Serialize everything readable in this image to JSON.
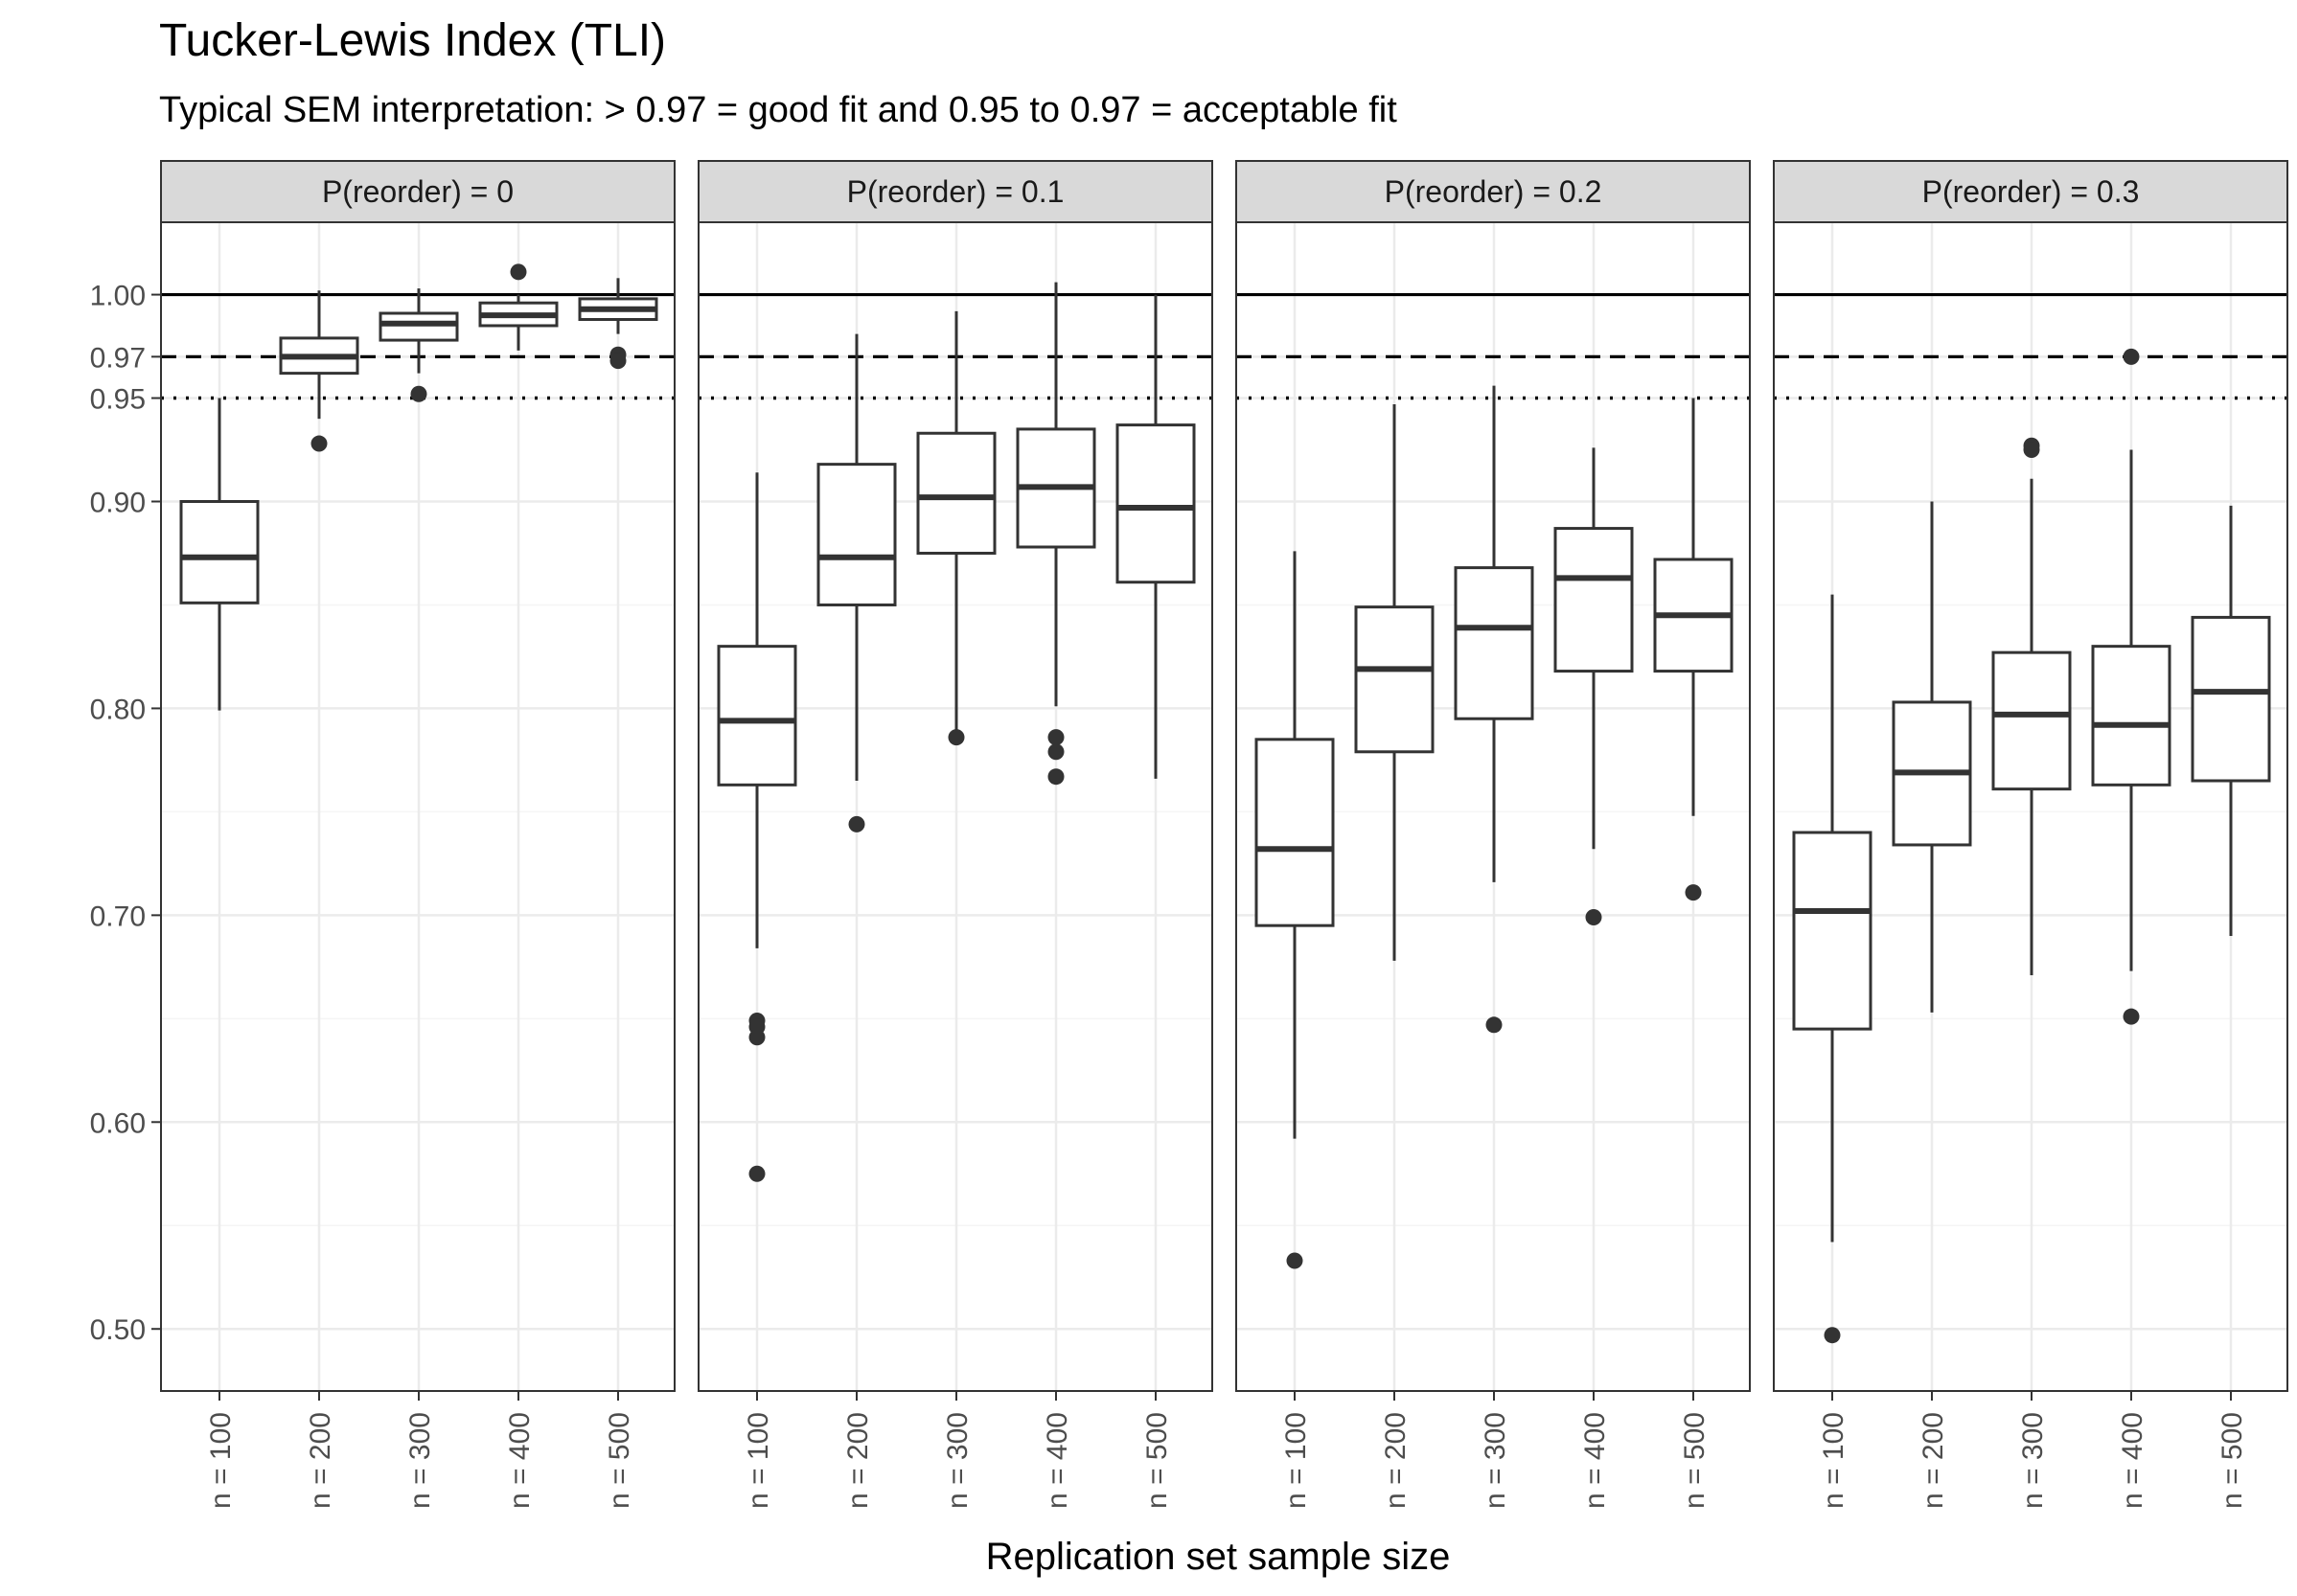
{
  "chart_data": {
    "type": "boxplot",
    "title": "Tucker-Lewis Index (TLI)",
    "subtitle": "Typical SEM interpretation: > 0.97 = good fit and 0.95 to 0.97 = acceptable fit",
    "xlabel": "Replication set sample size",
    "ylabel": "",
    "categories": [
      "n = 100",
      "n = 200",
      "n = 300",
      "n = 400",
      "n = 500"
    ],
    "ylim": [
      0.47,
      1.035
    ],
    "yticks": [
      0.5,
      0.6,
      0.7,
      0.8,
      0.9,
      0.95,
      0.97,
      1.0
    ],
    "ytick_labels": [
      "0.50",
      "0.60",
      "0.70",
      "0.80",
      "0.90",
      "0.95",
      "0.97",
      "1.00"
    ],
    "grid": true,
    "reference_lines": [
      {
        "y": 1.0,
        "style": "solid"
      },
      {
        "y": 0.97,
        "style": "dashed"
      },
      {
        "y": 0.95,
        "style": "dotted"
      }
    ],
    "panels": [
      {
        "label": "P(reorder) = 0",
        "boxes": [
          {
            "category": "n = 100",
            "whisker_low": 0.799,
            "q1": 0.851,
            "median": 0.873,
            "q3": 0.9,
            "whisker_high": 0.95,
            "outliers": []
          },
          {
            "category": "n = 200",
            "whisker_low": 0.94,
            "q1": 0.962,
            "median": 0.97,
            "q3": 0.979,
            "whisker_high": 1.002,
            "outliers": [
              0.928
            ]
          },
          {
            "category": "n = 300",
            "whisker_low": 0.962,
            "q1": 0.978,
            "median": 0.986,
            "q3": 0.991,
            "whisker_high": 1.003,
            "outliers": [
              0.952
            ]
          },
          {
            "category": "n = 400",
            "whisker_low": 0.973,
            "q1": 0.985,
            "median": 0.99,
            "q3": 0.996,
            "whisker_high": 1.0,
            "outliers": [
              1.011
            ]
          },
          {
            "category": "n = 500",
            "whisker_low": 0.981,
            "q1": 0.988,
            "median": 0.993,
            "q3": 0.998,
            "whisker_high": 1.008,
            "outliers": [
              0.971,
              0.968
            ]
          }
        ]
      },
      {
        "label": "P(reorder) = 0.1",
        "boxes": [
          {
            "category": "n = 100",
            "whisker_low": 0.684,
            "q1": 0.763,
            "median": 0.794,
            "q3": 0.83,
            "whisker_high": 0.914,
            "outliers": [
              0.649,
              0.646,
              0.641,
              0.575
            ]
          },
          {
            "category": "n = 200",
            "whisker_low": 0.765,
            "q1": 0.85,
            "median": 0.873,
            "q3": 0.918,
            "whisker_high": 0.981,
            "outliers": [
              0.744
            ]
          },
          {
            "category": "n = 300",
            "whisker_low": 0.787,
            "q1": 0.875,
            "median": 0.902,
            "q3": 0.933,
            "whisker_high": 0.992,
            "outliers": [
              0.786
            ]
          },
          {
            "category": "n = 400",
            "whisker_low": 0.801,
            "q1": 0.878,
            "median": 0.907,
            "q3": 0.935,
            "whisker_high": 1.006,
            "outliers": [
              0.786,
              0.779,
              0.767
            ]
          },
          {
            "category": "n = 500",
            "whisker_low": 0.766,
            "q1": 0.861,
            "median": 0.897,
            "q3": 0.937,
            "whisker_high": 1.0,
            "outliers": []
          }
        ]
      },
      {
        "label": "P(reorder) = 0.2",
        "boxes": [
          {
            "category": "n = 100",
            "whisker_low": 0.592,
            "q1": 0.695,
            "median": 0.732,
            "q3": 0.785,
            "whisker_high": 0.876,
            "outliers": [
              0.533
            ]
          },
          {
            "category": "n = 200",
            "whisker_low": 0.678,
            "q1": 0.779,
            "median": 0.819,
            "q3": 0.849,
            "whisker_high": 0.947,
            "outliers": []
          },
          {
            "category": "n = 300",
            "whisker_low": 0.716,
            "q1": 0.795,
            "median": 0.839,
            "q3": 0.868,
            "whisker_high": 0.956,
            "outliers": [
              0.647
            ]
          },
          {
            "category": "n = 400",
            "whisker_low": 0.732,
            "q1": 0.818,
            "median": 0.863,
            "q3": 0.887,
            "whisker_high": 0.926,
            "outliers": [
              0.699
            ]
          },
          {
            "category": "n = 500",
            "whisker_low": 0.748,
            "q1": 0.818,
            "median": 0.845,
            "q3": 0.872,
            "whisker_high": 0.95,
            "outliers": [
              0.711
            ]
          }
        ]
      },
      {
        "label": "P(reorder) = 0.3",
        "boxes": [
          {
            "category": "n = 100",
            "whisker_low": 0.542,
            "q1": 0.645,
            "median": 0.702,
            "q3": 0.74,
            "whisker_high": 0.855,
            "outliers": [
              0.497
            ]
          },
          {
            "category": "n = 200",
            "whisker_low": 0.653,
            "q1": 0.734,
            "median": 0.769,
            "q3": 0.803,
            "whisker_high": 0.9,
            "outliers": []
          },
          {
            "category": "n = 300",
            "whisker_low": 0.671,
            "q1": 0.761,
            "median": 0.797,
            "q3": 0.827,
            "whisker_high": 0.911,
            "outliers": [
              0.927,
              0.925
            ]
          },
          {
            "category": "n = 400",
            "whisker_low": 0.673,
            "q1": 0.763,
            "median": 0.792,
            "q3": 0.83,
            "whisker_high": 0.925,
            "outliers": [
              0.97,
              0.651
            ]
          },
          {
            "category": "n = 500",
            "whisker_low": 0.69,
            "q1": 0.765,
            "median": 0.808,
            "q3": 0.844,
            "whisker_high": 0.898,
            "outliers": []
          }
        ]
      }
    ],
    "colors": {
      "box_line": "#333333",
      "outlier": "#333333",
      "strip_fill": "#d9d9d9",
      "strip_border": "#333333",
      "panel_border": "#333333",
      "grid_major": "#ebebeb",
      "grid_minor": "#f5f5f5",
      "reference_line": "#000000",
      "tick_text": "#4d4d4d"
    }
  }
}
